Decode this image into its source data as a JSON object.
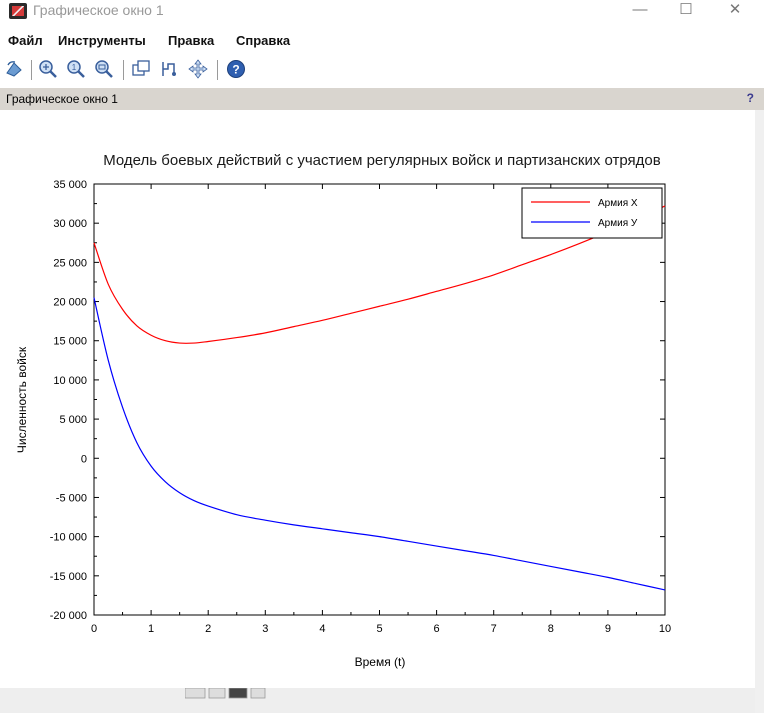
{
  "window": {
    "title": "Графическое окно 1",
    "controls": [
      "—",
      "☐",
      "✕"
    ]
  },
  "menu": [
    "Файл",
    "Инструменты",
    "Правка",
    "Справка"
  ],
  "toolbar": {
    "icons": [
      "rotate-icon",
      "zoom-in-icon",
      "zoom-reset-icon",
      "zoom-area-icon",
      "new-window-icon",
      "data-tip-icon",
      "pan-icon",
      "help-icon"
    ]
  },
  "panel": {
    "title": "Графическое окно 1",
    "help": "?"
  },
  "chart_data": {
    "type": "line",
    "title": "Модель боевых действий с участием регулярных войск и партизанских отрядов",
    "xlabel": "Время (t)",
    "ylabel": "Численность войск",
    "xlim": [
      0,
      10
    ],
    "ylim": [
      -20000,
      35000
    ],
    "x_ticks": [
      0,
      1,
      2,
      3,
      4,
      5,
      6,
      7,
      8,
      9,
      10
    ],
    "y_ticks": [
      -20000,
      -15000,
      -10000,
      -5000,
      0,
      5000,
      10000,
      15000,
      20000,
      25000,
      30000,
      35000
    ],
    "y_tick_labels": [
      "-20 000",
      "-15 000",
      "-10 000",
      "-5 000",
      "0",
      "5 000",
      "10 000",
      "15 000",
      "20 000",
      "25 000",
      "30 000",
      "35 000"
    ],
    "legend_position": "top-right",
    "series": [
      {
        "name": "Армия X",
        "color": "#ff0000",
        "x": [
          0,
          0.25,
          0.5,
          0.75,
          1.0,
          1.25,
          1.5,
          1.75,
          2.0,
          2.5,
          3.0,
          3.5,
          4.0,
          4.5,
          5.0,
          5.5,
          6.0,
          6.5,
          7.0,
          7.5,
          8.0,
          8.5,
          9.0,
          9.5,
          10.0
        ],
        "y": [
          27500,
          22200,
          19000,
          16900,
          15700,
          15000,
          14700,
          14700,
          14900,
          15400,
          16000,
          16800,
          17600,
          18500,
          19400,
          20300,
          21300,
          22300,
          23400,
          24700,
          26000,
          27400,
          28900,
          30500,
          32200
        ]
      },
      {
        "name": "Армия У",
        "color": "#0000ff",
        "x": [
          0,
          0.25,
          0.5,
          0.75,
          1.0,
          1.25,
          1.5,
          1.75,
          2.0,
          2.5,
          3.0,
          3.5,
          4.0,
          4.5,
          5.0,
          5.5,
          6.0,
          6.5,
          7.0,
          7.5,
          8.0,
          8.5,
          9.0,
          9.5,
          10.0
        ],
        "y": [
          20500,
          12500,
          6500,
          2000,
          -1000,
          -3000,
          -4400,
          -5400,
          -6100,
          -7200,
          -7900,
          -8500,
          -9000,
          -9500,
          -10000,
          -10600,
          -11200,
          -11800,
          -12400,
          -13100,
          -13800,
          -14500,
          -15200,
          -16000,
          -16800
        ]
      }
    ]
  }
}
